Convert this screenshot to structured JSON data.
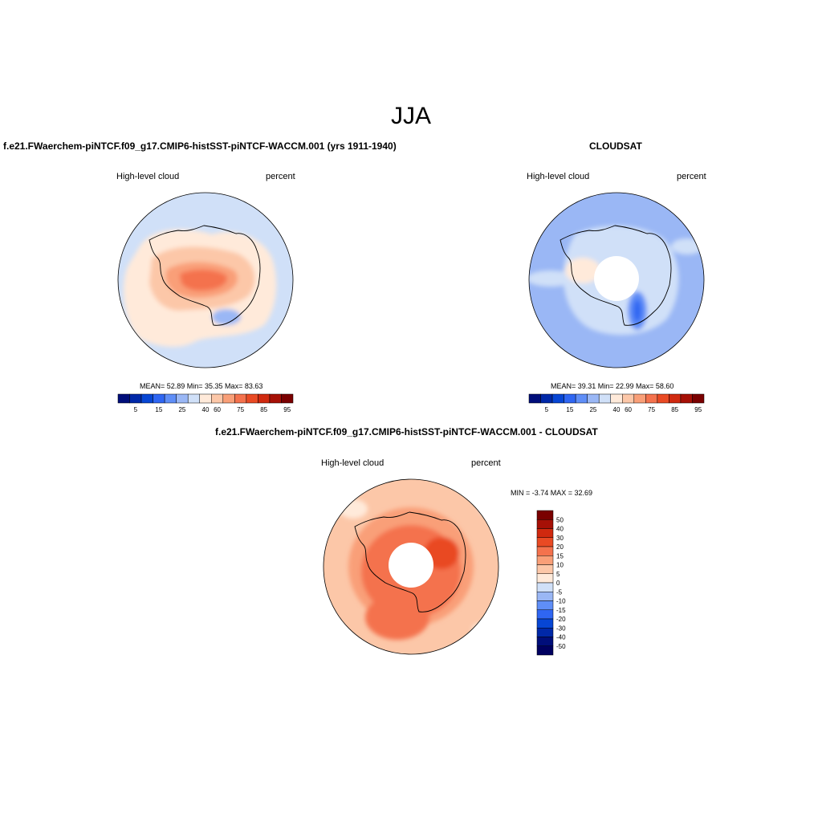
{
  "page_title": "JJA",
  "chart_data": [
    {
      "type": "heatmap",
      "projection": "south polar stereographic",
      "title": "f.e21.FWaerchem-piNTCF.f09_g17.CMIP6-histSST-piNTCF-WACCM.001 (yrs 1911-1940)",
      "left_label": "High-level cloud",
      "right_label": "percent",
      "stats": {
        "mean": "52.89",
        "min": "35.35",
        "max": "83.63"
      },
      "stats_text": "MEAN=  52.89  Min=  35.35  Max=  83.63",
      "colorbar": {
        "orientation": "horizontal",
        "tick_labels": [
          "5",
          "15",
          "25",
          "40",
          "60",
          "75",
          "85",
          "95"
        ],
        "colors": [
          "#000e7a",
          "#0028a8",
          "#0746d4",
          "#2f66f2",
          "#5f8ef7",
          "#9ab7f5",
          "#d0e0f8",
          "#ffeada",
          "#fcc7a8",
          "#f99f78",
          "#f4724d",
          "#e94a24",
          "#d0290f",
          "#a61006",
          "#7a0000"
        ]
      }
    },
    {
      "type": "heatmap",
      "projection": "south polar stereographic",
      "title": "CLOUDSAT",
      "left_label": "High-level cloud",
      "right_label": "percent",
      "stats": {
        "mean": "39.31",
        "min": "22.99",
        "max": "58.60"
      },
      "stats_text": "MEAN=  39.31  Min=  22.99  Max=  58.60",
      "colorbar": {
        "orientation": "horizontal",
        "tick_labels": [
          "5",
          "15",
          "25",
          "40",
          "60",
          "75",
          "85",
          "95"
        ],
        "colors": [
          "#000e7a",
          "#0028a8",
          "#0746d4",
          "#2f66f2",
          "#5f8ef7",
          "#9ab7f5",
          "#d0e0f8",
          "#ffeada",
          "#fcc7a8",
          "#f99f78",
          "#f4724d",
          "#e94a24",
          "#d0290f",
          "#a61006",
          "#7a0000"
        ]
      }
    },
    {
      "type": "heatmap",
      "projection": "south polar stereographic",
      "title": "f.e21.FWaerchem-piNTCF.f09_g17.CMIP6-histSST-piNTCF-WACCM.001 - CLOUDSAT",
      "left_label": "High-level cloud",
      "right_label": "percent",
      "stats": {
        "min": "-3.74",
        "max": "32.69"
      },
      "stats_text": "MIN =  -3.74 MAX =  32.69",
      "colorbar": {
        "orientation": "vertical",
        "tick_labels": [
          "50",
          "40",
          "30",
          "20",
          "15",
          "10",
          "5",
          "0",
          "-5",
          "-10",
          "-15",
          "-20",
          "-30",
          "-40",
          "-50"
        ],
        "colors": [
          "#7a0000",
          "#a61006",
          "#d0290f",
          "#e94a24",
          "#f4724d",
          "#f99f78",
          "#fcc7a8",
          "#ffeada",
          "#d0e0f8",
          "#9ab7f5",
          "#5f8ef7",
          "#2f66f2",
          "#0746d4",
          "#0028a8",
          "#000e7a",
          "#000060"
        ]
      }
    }
  ]
}
